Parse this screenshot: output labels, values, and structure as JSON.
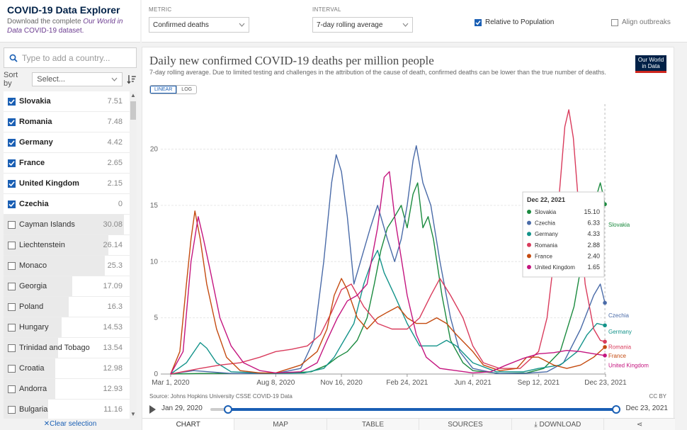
{
  "app": {
    "title": "COVID-19 Data Explorer",
    "desc_prefix": "Download the complete ",
    "desc_link_italic": "Our World in Data",
    "desc_link_rest": "COVID-19 dataset."
  },
  "search": {
    "placeholder": "Type to add a country..."
  },
  "sort": {
    "label": "Sort by",
    "value": "Select..."
  },
  "countries": [
    {
      "name": "Slovakia",
      "value": "7.51",
      "selected": true,
      "level": 0
    },
    {
      "name": "Romania",
      "value": "7.48",
      "selected": true,
      "level": 0
    },
    {
      "name": "Germany",
      "value": "4.42",
      "selected": true,
      "level": 0
    },
    {
      "name": "France",
      "value": "2.65",
      "selected": true,
      "level": 0
    },
    {
      "name": "United Kingdom",
      "value": "2.15",
      "selected": true,
      "level": 0
    },
    {
      "name": "Czechia",
      "value": "0",
      "selected": true,
      "level": 0
    },
    {
      "name": "Cayman Islands",
      "value": "30.08",
      "selected": false,
      "level": 1.0
    },
    {
      "name": "Liechtenstein",
      "value": "26.14",
      "selected": false,
      "level": 0.87
    },
    {
      "name": "Monaco",
      "value": "25.3",
      "selected": false,
      "level": 0.84
    },
    {
      "name": "Georgia",
      "value": "17.09",
      "selected": false,
      "level": 0.57
    },
    {
      "name": "Poland",
      "value": "16.3",
      "selected": false,
      "level": 0.54
    },
    {
      "name": "Hungary",
      "value": "14.53",
      "selected": false,
      "level": 0.48
    },
    {
      "name": "Trinidad and Tobago",
      "value": "13.54",
      "selected": false,
      "level": 0.45
    },
    {
      "name": "Croatia",
      "value": "12.98",
      "selected": false,
      "level": 0.43
    },
    {
      "name": "Andorra",
      "value": "12.93",
      "selected": false,
      "level": 0.43
    },
    {
      "name": "Bulgaria",
      "value": "11.16",
      "selected": false,
      "level": 0.37
    }
  ],
  "clear_label": "Clear selection",
  "controls": {
    "metric_label": "METRIC",
    "metric_value": "Confirmed deaths",
    "interval_label": "INTERVAL",
    "interval_value": "7-day rolling average",
    "relative_label": "Relative to Population",
    "relative_checked": true,
    "align_label": "Align outbreaks",
    "align_checked": false
  },
  "logo_text": "Our World in Data",
  "scale_tabs": [
    "LINEAR",
    "LOG"
  ],
  "timeline": {
    "start": "Jan 29, 2020",
    "end": "Dec 23, 2021"
  },
  "tabs": [
    "CHART",
    "MAP",
    "TABLE",
    "SOURCES",
    "DOWNLOAD"
  ],
  "colors": {
    "accent": "#1a5fb4",
    "Slovakia": "#1a8a3e",
    "Czechia": "#4a6ba8",
    "Germany": "#13938a",
    "Romania": "#d93b5c",
    "France": "#c44a0f",
    "United Kingdom": "#c4157f"
  },
  "chart_data": {
    "type": "line",
    "title": "Daily new confirmed COVID-19 deaths per million people",
    "subtitle": "7-day rolling average. Due to limited testing and challenges in the attribution of the cause of death, confirmed deaths can be lower than the true number of deaths.",
    "source": "Source: Johns Hopkins University CSSE COVID-19 Data",
    "license": "CC BY",
    "xlabel": "",
    "ylabel": "",
    "ylim": [
      0,
      24
    ],
    "yticks": [
      0,
      5,
      10,
      15,
      20
    ],
    "xlim": [
      "2020-02-15",
      "2021-12-23"
    ],
    "xticks": [
      {
        "date": "2020-03-01",
        "label": "Mar 1, 2020"
      },
      {
        "date": "2020-08-08",
        "label": "Aug 8, 2020"
      },
      {
        "date": "2020-11-16",
        "label": "Nov 16, 2020"
      },
      {
        "date": "2021-02-24",
        "label": "Feb 24, 2021"
      },
      {
        "date": "2021-06-04",
        "label": "Jun 4, 2021"
      },
      {
        "date": "2021-09-12",
        "label": "Sep 12, 2021"
      },
      {
        "date": "2021-12-23",
        "label": "Dec 23, 2021"
      }
    ],
    "grid": true,
    "legend": "end-labels",
    "series": [
      {
        "name": "Slovakia",
        "points": [
          [
            "2020-03-01",
            0
          ],
          [
            "2020-04-15",
            0.05
          ],
          [
            "2020-08-08",
            0.05
          ],
          [
            "2020-10-01",
            0.2
          ],
          [
            "2020-10-25",
            0.8
          ],
          [
            "2020-11-10",
            1.5
          ],
          [
            "2020-11-25",
            2
          ],
          [
            "2020-12-10",
            3
          ],
          [
            "2020-12-25",
            5
          ],
          [
            "2021-01-05",
            8
          ],
          [
            "2021-01-15",
            11
          ],
          [
            "2021-01-25",
            13
          ],
          [
            "2021-02-05",
            14
          ],
          [
            "2021-02-15",
            15
          ],
          [
            "2021-02-24",
            13
          ],
          [
            "2021-03-05",
            16
          ],
          [
            "2021-03-12",
            17
          ],
          [
            "2021-03-20",
            13
          ],
          [
            "2021-03-28",
            14
          ],
          [
            "2021-04-05",
            12
          ],
          [
            "2021-04-18",
            7
          ],
          [
            "2021-05-01",
            3
          ],
          [
            "2021-05-20",
            1
          ],
          [
            "2021-06-04",
            0.3
          ],
          [
            "2021-07-15",
            0.05
          ],
          [
            "2021-08-25",
            0.1
          ],
          [
            "2021-09-20",
            0.5
          ],
          [
            "2021-10-15",
            2
          ],
          [
            "2021-11-05",
            6
          ],
          [
            "2021-11-20",
            11
          ],
          [
            "2021-12-05",
            15
          ],
          [
            "2021-12-15",
            17
          ],
          [
            "2021-12-19",
            16
          ],
          [
            "2021-12-22",
            15.1
          ]
        ]
      },
      {
        "name": "Czechia",
        "points": [
          [
            "2020-03-01",
            0
          ],
          [
            "2020-04-05",
            0.3
          ],
          [
            "2020-06-01",
            0.05
          ],
          [
            "2020-08-08",
            0.05
          ],
          [
            "2020-09-15",
            0.5
          ],
          [
            "2020-10-05",
            3
          ],
          [
            "2020-10-20",
            10
          ],
          [
            "2020-11-01",
            17
          ],
          [
            "2020-11-08",
            19.5
          ],
          [
            "2020-11-16",
            18
          ],
          [
            "2020-11-25",
            14
          ],
          [
            "2020-12-05",
            8
          ],
          [
            "2020-12-15",
            10
          ],
          [
            "2020-12-30",
            13
          ],
          [
            "2021-01-10",
            15
          ],
          [
            "2021-01-25",
            12
          ],
          [
            "2021-02-05",
            10
          ],
          [
            "2021-02-15",
            12
          ],
          [
            "2021-02-24",
            15
          ],
          [
            "2021-03-05",
            19
          ],
          [
            "2021-03-10",
            20.3
          ],
          [
            "2021-03-20",
            17
          ],
          [
            "2021-04-01",
            15
          ],
          [
            "2021-04-15",
            10
          ],
          [
            "2021-05-01",
            5
          ],
          [
            "2021-05-15",
            2
          ],
          [
            "2021-06-04",
            0.5
          ],
          [
            "2021-07-10",
            0.05
          ],
          [
            "2021-08-20",
            0.05
          ],
          [
            "2021-09-25",
            0.2
          ],
          [
            "2021-10-20",
            1
          ],
          [
            "2021-11-15",
            4
          ],
          [
            "2021-12-05",
            7
          ],
          [
            "2021-12-15",
            8
          ],
          [
            "2021-12-22",
            6.33
          ]
        ]
      },
      {
        "name": "Germany",
        "points": [
          [
            "2020-03-01",
            0
          ],
          [
            "2020-03-25",
            1
          ],
          [
            "2020-04-15",
            2.8
          ],
          [
            "2020-04-25",
            2.3
          ],
          [
            "2020-05-10",
            1
          ],
          [
            "2020-06-01",
            0.2
          ],
          [
            "2020-08-08",
            0.05
          ],
          [
            "2020-09-20",
            0.1
          ],
          [
            "2020-10-20",
            0.5
          ],
          [
            "2020-11-05",
            1.5
          ],
          [
            "2020-11-20",
            3
          ],
          [
            "2020-12-05",
            4.5
          ],
          [
            "2020-12-20",
            8
          ],
          [
            "2021-01-01",
            10
          ],
          [
            "2021-01-10",
            11
          ],
          [
            "2021-01-20",
            9
          ],
          [
            "2021-02-05",
            7
          ],
          [
            "2021-02-24",
            4.5
          ],
          [
            "2021-03-15",
            2.5
          ],
          [
            "2021-04-10",
            2.5
          ],
          [
            "2021-04-25",
            3
          ],
          [
            "2021-05-10",
            2.5
          ],
          [
            "2021-06-04",
            1
          ],
          [
            "2021-07-10",
            0.2
          ],
          [
            "2021-08-20",
            0.2
          ],
          [
            "2021-09-12",
            0.5
          ],
          [
            "2021-10-15",
            0.8
          ],
          [
            "2021-11-10",
            2
          ],
          [
            "2021-11-25",
            3.5
          ],
          [
            "2021-12-10",
            4.5
          ],
          [
            "2021-12-22",
            4.33
          ]
        ]
      },
      {
        "name": "Romania",
        "points": [
          [
            "2020-03-01",
            0
          ],
          [
            "2020-04-15",
            0.5
          ],
          [
            "2020-05-15",
            0.8
          ],
          [
            "2020-06-15",
            1
          ],
          [
            "2020-07-15",
            1.5
          ],
          [
            "2020-08-08",
            2
          ],
          [
            "2020-09-01",
            2.2
          ],
          [
            "2020-09-25",
            2.5
          ],
          [
            "2020-10-15",
            3.5
          ],
          [
            "2020-11-01",
            5.5
          ],
          [
            "2020-11-16",
            7.5
          ],
          [
            "2020-12-01",
            8
          ],
          [
            "2020-12-20",
            6
          ],
          [
            "2021-01-10",
            4.5
          ],
          [
            "2021-02-01",
            4
          ],
          [
            "2021-02-24",
            4
          ],
          [
            "2021-03-15",
            5
          ],
          [
            "2021-04-01",
            7
          ],
          [
            "2021-04-15",
            8.5
          ],
          [
            "2021-05-01",
            7
          ],
          [
            "2021-05-20",
            5
          ],
          [
            "2021-06-04",
            2.5
          ],
          [
            "2021-06-20",
            1
          ],
          [
            "2021-07-15",
            0.5
          ],
          [
            "2021-08-15",
            0.5
          ],
          [
            "2021-09-12",
            2
          ],
          [
            "2021-09-25",
            5
          ],
          [
            "2021-10-05",
            10
          ],
          [
            "2021-10-15",
            17
          ],
          [
            "2021-10-22",
            22
          ],
          [
            "2021-10-28",
            23.5
          ],
          [
            "2021-11-04",
            21
          ],
          [
            "2021-11-12",
            15
          ],
          [
            "2021-11-22",
            8
          ],
          [
            "2021-12-05",
            4
          ],
          [
            "2021-12-15",
            3
          ],
          [
            "2021-12-22",
            2.88
          ]
        ]
      },
      {
        "name": "France",
        "points": [
          [
            "2020-03-01",
            0
          ],
          [
            "2020-03-15",
            2
          ],
          [
            "2020-03-25",
            8
          ],
          [
            "2020-04-01",
            12
          ],
          [
            "2020-04-07",
            14.5
          ],
          [
            "2020-04-15",
            12
          ],
          [
            "2020-04-25",
            8
          ],
          [
            "2020-05-10",
            4
          ],
          [
            "2020-05-25",
            1.5
          ],
          [
            "2020-06-15",
            0.3
          ],
          [
            "2020-07-15",
            0.1
          ],
          [
            "2020-08-08",
            0.1
          ],
          [
            "2020-09-15",
            0.8
          ],
          [
            "2020-10-10",
            2
          ],
          [
            "2020-10-25",
            4
          ],
          [
            "2020-11-05",
            7
          ],
          [
            "2020-11-16",
            8.5
          ],
          [
            "2020-11-25",
            7.5
          ],
          [
            "2020-12-10",
            5
          ],
          [
            "2020-12-25",
            4
          ],
          [
            "2021-01-10",
            5
          ],
          [
            "2021-01-25",
            5.5
          ],
          [
            "2021-02-10",
            6
          ],
          [
            "2021-02-24",
            5
          ],
          [
            "2021-03-10",
            4.5
          ],
          [
            "2021-03-25",
            4.5
          ],
          [
            "2021-04-10",
            5
          ],
          [
            "2021-04-25",
            4.5
          ],
          [
            "2021-05-10",
            3.5
          ],
          [
            "2021-06-04",
            2
          ],
          [
            "2021-06-20",
            0.8
          ],
          [
            "2021-07-15",
            0.3
          ],
          [
            "2021-08-10",
            0.5
          ],
          [
            "2021-08-25",
            1.5
          ],
          [
            "2021-09-12",
            1.5
          ],
          [
            "2021-10-05",
            0.8
          ],
          [
            "2021-10-25",
            0.5
          ],
          [
            "2021-11-15",
            0.8
          ],
          [
            "2021-12-05",
            1.5
          ],
          [
            "2021-12-22",
            2.4
          ]
        ]
      },
      {
        "name": "United Kingdom",
        "points": [
          [
            "2020-03-01",
            0
          ],
          [
            "2020-03-20",
            2
          ],
          [
            "2020-04-01",
            10
          ],
          [
            "2020-04-12",
            14
          ],
          [
            "2020-04-20",
            12
          ],
          [
            "2020-05-01",
            9
          ],
          [
            "2020-05-15",
            5
          ],
          [
            "2020-06-01",
            2.5
          ],
          [
            "2020-06-20",
            1
          ],
          [
            "2020-07-15",
            0.3
          ],
          [
            "2020-08-08",
            0.1
          ],
          [
            "2020-09-15",
            0.2
          ],
          [
            "2020-10-10",
            1
          ],
          [
            "2020-10-25",
            3
          ],
          [
            "2020-11-10",
            5
          ],
          [
            "2020-11-25",
            6.5
          ],
          [
            "2020-12-10",
            7
          ],
          [
            "2020-12-25",
            8
          ],
          [
            "2021-01-10",
            13
          ],
          [
            "2021-01-20",
            17.5
          ],
          [
            "2021-01-28",
            18
          ],
          [
            "2021-02-05",
            14
          ],
          [
            "2021-02-24",
            7
          ],
          [
            "2021-03-10",
            3.5
          ],
          [
            "2021-03-25",
            1.5
          ],
          [
            "2021-04-15",
            0.5
          ],
          [
            "2021-06-04",
            0.1
          ],
          [
            "2021-07-01",
            0.2
          ],
          [
            "2021-07-25",
            0.8
          ],
          [
            "2021-08-20",
            1.4
          ],
          [
            "2021-09-12",
            1.8
          ],
          [
            "2021-10-05",
            1.9
          ],
          [
            "2021-10-25",
            2.1
          ],
          [
            "2021-11-15",
            2
          ],
          [
            "2021-12-05",
            1.8
          ],
          [
            "2021-12-22",
            1.65
          ]
        ]
      }
    ],
    "end_labels": [
      "Slovakia",
      "Czechia",
      "Germany",
      "Romania",
      "France",
      "United Kingdom"
    ],
    "tooltip": {
      "date": "Dec 22, 2021",
      "rows": [
        {
          "name": "Slovakia",
          "value": "15.10"
        },
        {
          "name": "Czechia",
          "value": "6.33"
        },
        {
          "name": "Germany",
          "value": "4.33"
        },
        {
          "name": "Romania",
          "value": "2.88"
        },
        {
          "name": "France",
          "value": "2.40"
        },
        {
          "name": "United Kingdom",
          "value": "1.65"
        }
      ]
    }
  }
}
